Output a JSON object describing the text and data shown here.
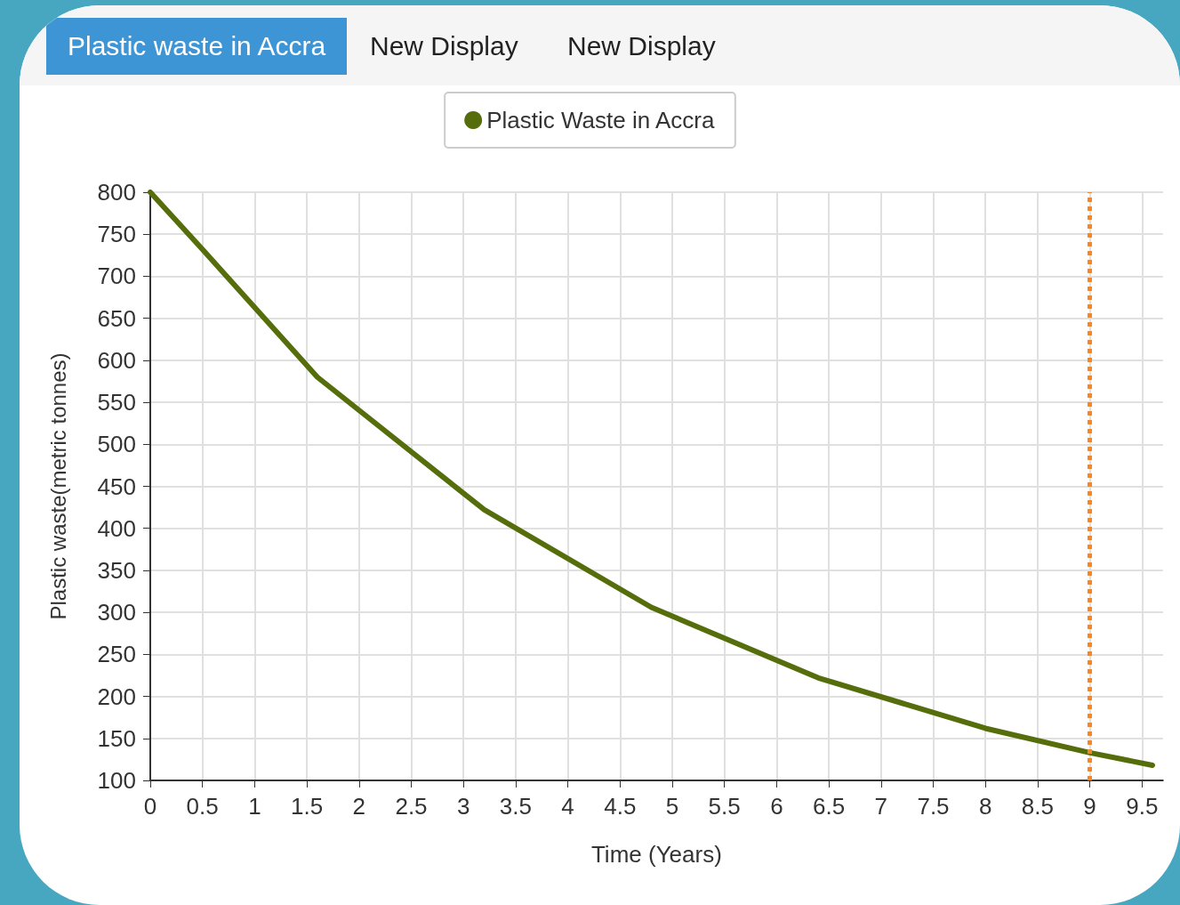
{
  "chart_data": {
    "type": "line",
    "annotations": [
      "Plastic waste in Accra",
      "New Display",
      "New Display"
    ],
    "xlabel": "Time (Years)",
    "ylabel": "Plastic waste(metric tonnes)",
    "x": [
      0,
      0.5,
      1.6,
      3.2,
      4.8,
      6.4,
      8,
      9,
      9.6
    ],
    "series": [
      {
        "name": "Plastic Waste in Accra",
        "color": "#566d0c",
        "values": [
          800,
          732,
          580,
          422,
          306,
          222,
          162,
          133,
          118
        ]
      }
    ],
    "xlim": [
      0,
      9.7
    ],
    "xticks": [
      0,
      0.5,
      1,
      1.5,
      2,
      2.5,
      3,
      3.5,
      4,
      4.5,
      5,
      5.5,
      6,
      6.5,
      7,
      7.5,
      8,
      8.5,
      9,
      9.5
    ],
    "ylim": [
      100,
      800
    ],
    "yticks": [
      100,
      150,
      200,
      250,
      300,
      350,
      400,
      450,
      500,
      550,
      600,
      650,
      700,
      750,
      800
    ],
    "grid": true,
    "legend": "top",
    "marker": "none",
    "line_style": "solid",
    "ref_lines": [
      {
        "axis": "x",
        "value": 9,
        "color": "#f0892c",
        "line_style": "dotted"
      }
    ]
  }
}
